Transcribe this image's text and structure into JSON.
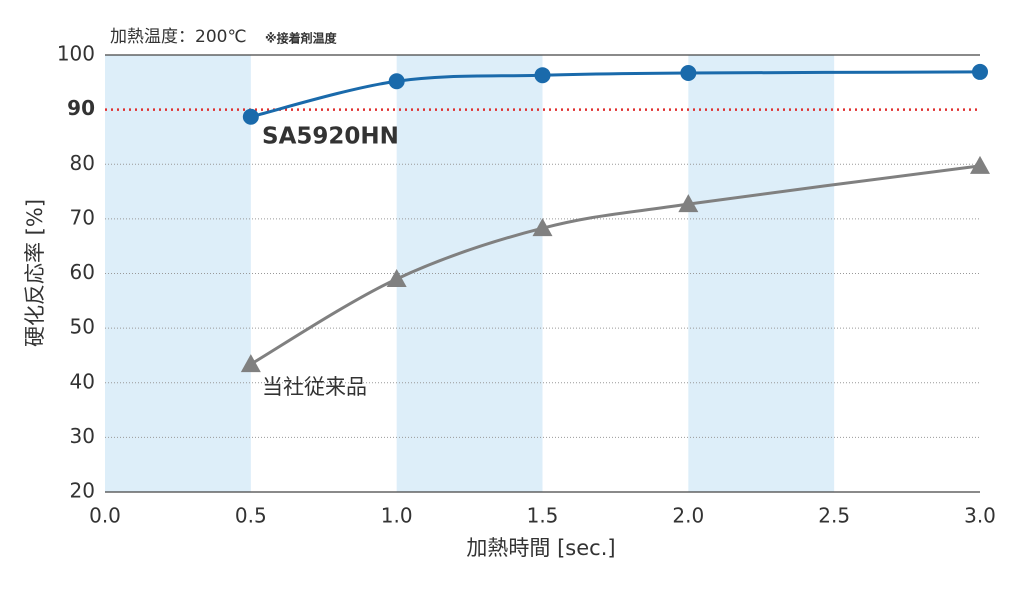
{
  "chart_data": {
    "type": "line",
    "annotation": "加熱温度：200℃",
    "annotation_note": "※接着剤温度",
    "xlabel": "加熱時間 [sec.]",
    "ylabel": "硬化反応率 [%]",
    "x": [
      0.5,
      1.0,
      1.5,
      2.0,
      3.0
    ],
    "series": [
      {
        "name": "SA5920HN",
        "color": "#1a6aab",
        "marker": "circle",
        "values": [
          88.7,
          95.2,
          96.3,
          96.7,
          96.9
        ]
      },
      {
        "name": "当社従来品",
        "color": "#808080",
        "marker": "triangle",
        "values": [
          43.4,
          59.0,
          68.3,
          72.7,
          79.7
        ]
      }
    ],
    "xlim": [
      0,
      3
    ],
    "xticks": [
      {
        "value": 0,
        "label": "0.0"
      },
      0.5,
      {
        "value": 1,
        "label": "1.0"
      },
      1.5,
      {
        "value": 2,
        "label": "2.0"
      },
      2.5,
      {
        "value": 3,
        "label": "3.0"
      }
    ],
    "ylim": [
      20,
      100
    ],
    "yticks": [
      20,
      30,
      40,
      50,
      60,
      70,
      80,
      90,
      100
    ],
    "threshold": 90,
    "threshold_color": "#e03030",
    "shaded_bands": [
      [
        0,
        0.5
      ],
      [
        1,
        1.5
      ],
      [
        2,
        2.5
      ]
    ],
    "band_color": "#ddeef9",
    "grid": true
  }
}
